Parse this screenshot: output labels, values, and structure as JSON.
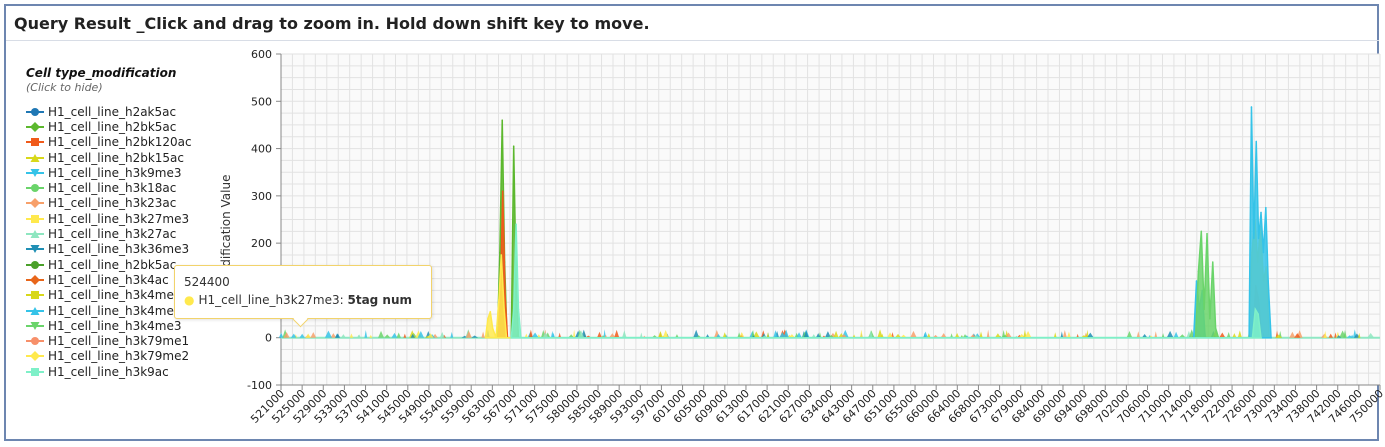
{
  "title": "Query Result _Click and drag to zoom in. Hold down shift key to move.",
  "legend": {
    "title": "Cell type_modification",
    "subtitle": "(Click to hide)",
    "items": [
      {
        "label": "H1_cell_line_h2ak5ac",
        "color": "#1f77b4",
        "marker": "circle"
      },
      {
        "label": "H1_cell_line_h2bk5ac",
        "color": "#5cb82e",
        "marker": "diamond"
      },
      {
        "label": "H1_cell_line_h2bk120ac",
        "color": "#f05a1a",
        "marker": "square"
      },
      {
        "label": "H1_cell_line_h2bk15ac",
        "color": "#d8d81a",
        "marker": "triangle"
      },
      {
        "label": "H1_cell_line_h3k9me3",
        "color": "#35c3e8",
        "marker": "triangle-down"
      },
      {
        "label": "H1_cell_line_h3k18ac",
        "color": "#6ad46a",
        "marker": "circle"
      },
      {
        "label": "H1_cell_line_h3k23ac",
        "color": "#f7a06a",
        "marker": "diamond"
      },
      {
        "label": "H1_cell_line_h3k27me3",
        "color": "#ffe94d",
        "marker": "square"
      },
      {
        "label": "H1_cell_line_h3k27ac",
        "color": "#8ee6c0",
        "marker": "triangle"
      },
      {
        "label": "H1_cell_line_h3k36me3",
        "color": "#1f8fb4",
        "marker": "triangle-down"
      },
      {
        "label": "H1_cell_line_h2bk5ac",
        "color": "#4aa02a",
        "marker": "circle"
      },
      {
        "label": "H1_cell_line_h3k4ac",
        "color": "#e8661a",
        "marker": "diamond"
      },
      {
        "label": "H1_cell_line_h3k4me",
        "color": "#d8d81a",
        "marker": "square"
      },
      {
        "label": "H1_cell_line_h3k4me",
        "color": "#35c3e8",
        "marker": "triangle"
      },
      {
        "label": "H1_cell_line_h3k4me3",
        "color": "#6ad46a",
        "marker": "triangle-down"
      },
      {
        "label": "H1_cell_line_h3k79me1",
        "color": "#f7906a",
        "marker": "circle"
      },
      {
        "label": "H1_cell_line_h3k79me2",
        "color": "#ffe94d",
        "marker": "diamond"
      },
      {
        "label": "H1_cell_line_h3k9ac",
        "color": "#7ef0c8",
        "marker": "square"
      }
    ]
  },
  "tooltip": {
    "x": "524400",
    "series": "H1_cell_line_h3k27me3:",
    "value": "5tag num",
    "color": "#ffe94d"
  },
  "chart_data": {
    "type": "area",
    "ylabel": "Modification Value",
    "ylim": [
      -100,
      600
    ],
    "yticks": [
      -100,
      0,
      100,
      200,
      300,
      400,
      500,
      600
    ],
    "xlim": [
      521000,
      751000
    ],
    "xticks": [
      521000,
      525000,
      529000,
      533000,
      537000,
      541000,
      545000,
      549000,
      554000,
      559000,
      563000,
      567000,
      571000,
      575000,
      580000,
      585000,
      589000,
      593000,
      597000,
      601000,
      605000,
      609000,
      613000,
      617000,
      621000,
      627000,
      634000,
      643000,
      647000,
      651000,
      655000,
      660000,
      664000,
      668000,
      673000,
      679000,
      684000,
      690000,
      694000,
      698000,
      702000,
      706000,
      710000,
      714000,
      718000,
      722000,
      726000,
      730000,
      734000,
      738000,
      742000,
      746000,
      750000
    ],
    "grid": true,
    "legend_position": "left",
    "baseline": 5,
    "series": [
      {
        "name": "H1_cell_line_h2bk5ac",
        "color": "#5cb82e",
        "x": [
          566300,
          566800,
          567300,
          567800,
          568300,
          569200,
          569700,
          570200,
          570700
        ],
        "y": [
          0,
          180,
          460,
          160,
          0,
          0,
          405,
          120,
          0
        ]
      },
      {
        "name": "H1_cell_line_h2bk120ac",
        "color": "#f05a1a",
        "x": [
          566500,
          567000,
          567400,
          567900,
          568400,
          724400,
          725000,
          725600,
          726200
        ],
        "y": [
          0,
          120,
          310,
          90,
          0,
          0,
          110,
          80,
          0
        ]
      },
      {
        "name": "H1_cell_line_h3k27me3",
        "color": "#ffe94d",
        "x": [
          563800,
          564300,
          564800,
          565300,
          566000,
          566600,
          567100,
          567700,
          568200,
          723600,
          724200,
          724800,
          725400,
          726000,
          726600,
          727200,
          727800
        ],
        "y": [
          0,
          40,
          55,
          20,
          0,
          80,
          175,
          60,
          0,
          0,
          180,
          250,
          160,
          235,
          120,
          150,
          0
        ]
      },
      {
        "name": "H1_cell_line_h3k9me3",
        "color": "#35c3e8",
        "x": [
          712000,
          712600,
          713200,
          713800,
          714400,
          723600,
          724100,
          724600,
          725100,
          725600,
          726100,
          726600,
          727100,
          727600,
          728200
        ],
        "y": [
          0,
          120,
          60,
          100,
          0,
          0,
          488,
          210,
          415,
          210,
          265,
          180,
          275,
          120,
          0
        ]
      },
      {
        "name": "H1_cell_line_h3k18ac",
        "color": "#6ad46a",
        "x": [
          712400,
          713000,
          713600,
          714200,
          714800,
          715400,
          716000,
          716600,
          717200
        ],
        "y": [
          0,
          140,
          225,
          60,
          220,
          40,
          160,
          20,
          0
        ]
      },
      {
        "name": "H1_cell_line_h3k9ac",
        "color": "#7ef0c8",
        "x": [
          569200,
          569700,
          570200,
          570700,
          571200,
          724300,
          724900,
          725500,
          726100
        ],
        "y": [
          0,
          60,
          240,
          60,
          0,
          0,
          60,
          50,
          0
        ]
      }
    ]
  }
}
